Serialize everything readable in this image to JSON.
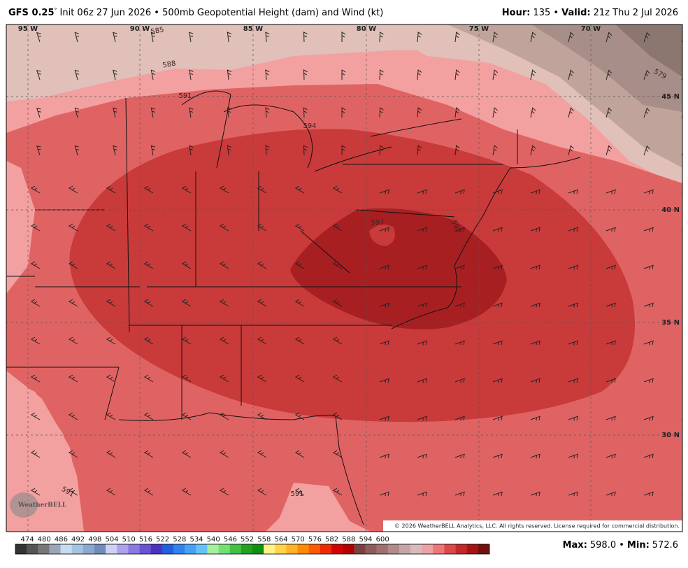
{
  "header": {
    "model": "GFS 0.25",
    "degree": "°",
    "init": "Init 06z 27 Jun 2026 • 500mb Geopotential Height (dam) and Wind (kt)",
    "hour_label": "Hour:",
    "hour": "135 •",
    "valid_label": "Valid:",
    "valid": "21z Thu 2 Jul 2026"
  },
  "map": {
    "lon_labels": [
      "95 W",
      "90 W",
      "85 W",
      "80 W",
      "75 W",
      "70 W"
    ],
    "lat_labels": [
      "45 N",
      "40 N",
      "35 N",
      "30 N"
    ],
    "contour_labels": [
      "585",
      "588",
      "591",
      "594",
      "597",
      "597",
      "579",
      "591",
      "591"
    ],
    "logo": "WeatherBELL",
    "copyright": "© 2026 WeatherBELL Analytics, LLC. All rights reserved. License required for commercial distribution."
  },
  "colorbar": {
    "labels": [
      "474",
      "480",
      "486",
      "492",
      "498",
      "504",
      "510",
      "516",
      "522",
      "528",
      "534",
      "540",
      "546",
      "552",
      "558",
      "564",
      "570",
      "576",
      "582",
      "588",
      "594",
      "600"
    ],
    "colors": [
      "#333333",
      "#555555",
      "#777777",
      "#9aa6b8",
      "#c6daf0",
      "#a4c2e2",
      "#8aa8d0",
      "#6f8cbc",
      "#cfd0f6",
      "#aca2ee",
      "#8a78e2",
      "#6c52d4",
      "#4a32c2",
      "#1f5fe0",
      "#2f82f0",
      "#45a2f6",
      "#66c2f6",
      "#a2f0a0",
      "#72e070",
      "#42c042",
      "#22a022",
      "#0f900f",
      "#fff286",
      "#ffd446",
      "#ffb224",
      "#ff8a04",
      "#ff5a02",
      "#f02a00",
      "#d20202",
      "#b40000",
      "#7c4040",
      "#8f5c5c",
      "#a07070",
      "#b28a8a",
      "#c4a6a6",
      "#d8baba",
      "#eca2a2",
      "#f07474",
      "#dc4848",
      "#c42828",
      "#a41414",
      "#721010"
    ]
  },
  "footer": {
    "max_label": "Max:",
    "max": "598.0 •",
    "min_label": "Min:",
    "min": "572.6"
  }
}
